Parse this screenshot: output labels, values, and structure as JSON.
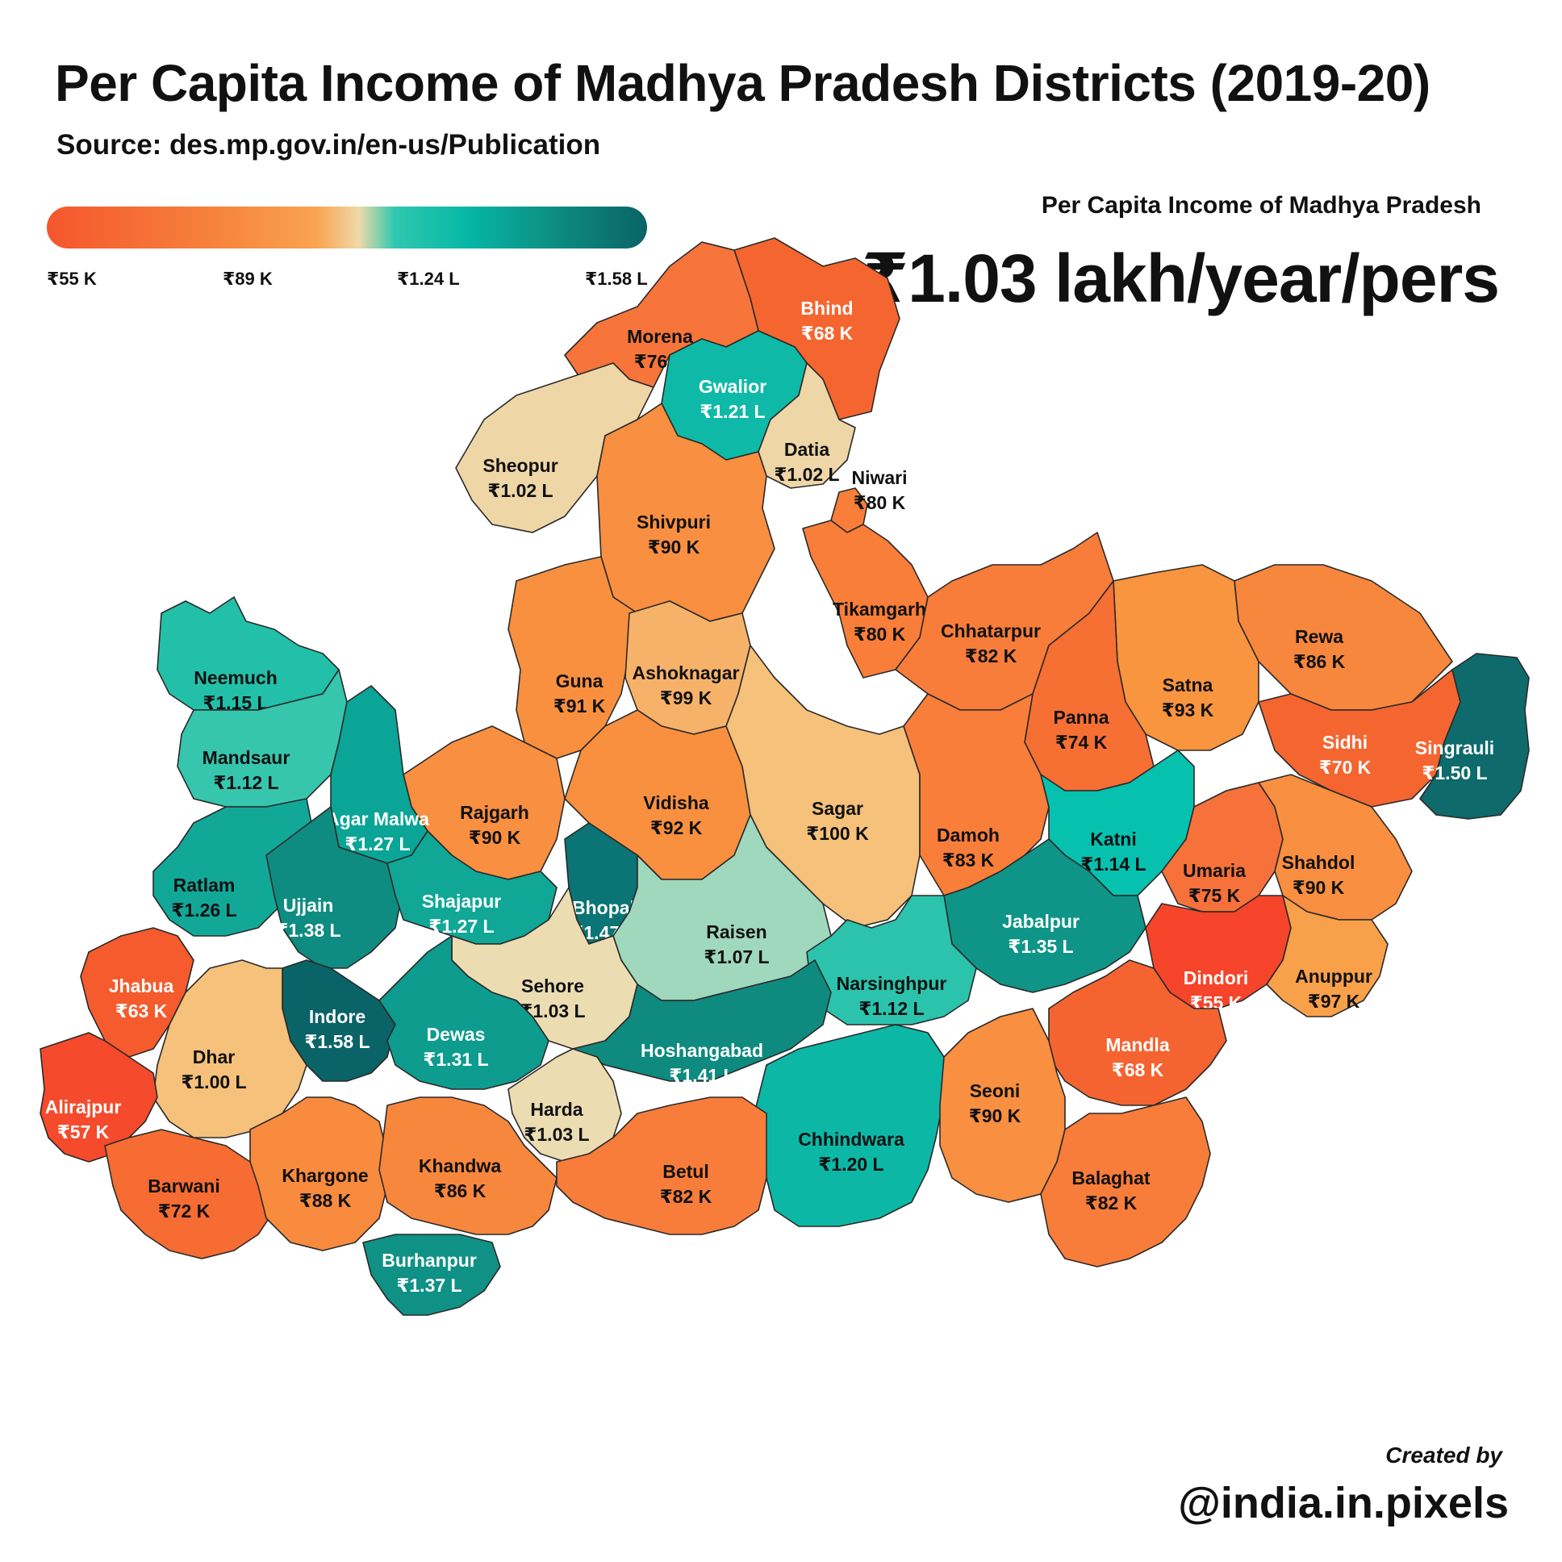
{
  "title": "Per Capita Income of Madhya Pradesh Districts (2019-20)",
  "source": "Source: des.mp.gov.in/en-us/Publication",
  "legend": {
    "ticks": [
      "₹55 K",
      "₹89 K",
      "₹1.24 L",
      "₹1.58 L"
    ],
    "min_color": "#f5562e",
    "max_color": "#0a6366"
  },
  "state_summary": {
    "label": "Per Capita Income of Madhya Pradesh",
    "value": "₹1.03 lakh/year/pers"
  },
  "credit": {
    "line1": "Created by",
    "line2": "@india.in.pixels"
  },
  "districts": [
    {
      "name": "Bhind",
      "value": "₹68 K",
      "color": "#f5652f"
    },
    {
      "name": "Morena",
      "value": "₹76 K",
      "color": "#f7753a"
    },
    {
      "name": "Gwalior",
      "value": "₹1.21 L",
      "color": "#0fb9a7"
    },
    {
      "name": "Datia",
      "value": "₹1.02 L",
      "color": "#efd6a6"
    },
    {
      "name": "Sheopur",
      "value": "₹1.02 L",
      "color": "#efd6a6"
    },
    {
      "name": "Shivpuri",
      "value": "₹90 K",
      "color": "#f98f40"
    },
    {
      "name": "Niwari",
      "value": "₹80 K",
      "color": "#f87e3a"
    },
    {
      "name": "Tikamgarh",
      "value": "₹80 K",
      "color": "#f87e3a"
    },
    {
      "name": "Chhatarpur",
      "value": "₹82 K",
      "color": "#f87d3a"
    },
    {
      "name": "Guna",
      "value": "₹91 K",
      "color": "#f9903f"
    },
    {
      "name": "Ashoknagar",
      "value": "₹99 K",
      "color": "#f7b26a"
    },
    {
      "name": "Neemuch",
      "value": "₹1.15 L",
      "color": "#22c0a8"
    },
    {
      "name": "Mandsaur",
      "value": "₹1.12 L",
      "color": "#36c6ae"
    },
    {
      "name": "Rewa",
      "value": "₹86 K",
      "color": "#f8873e"
    },
    {
      "name": "Satna",
      "value": "₹93 K",
      "color": "#f9943f"
    },
    {
      "name": "Panna",
      "value": "₹74 K",
      "color": "#f66f33"
    },
    {
      "name": "Sidhi",
      "value": "₹70 K",
      "color": "#f56530"
    },
    {
      "name": "Singrauli",
      "value": "₹1.50 L",
      "color": "#0e6a6b"
    },
    {
      "name": "Rajgarh",
      "value": "₹90 K",
      "color": "#f98f40"
    },
    {
      "name": "Vidisha",
      "value": "₹92 K",
      "color": "#f9903f"
    },
    {
      "name": "Sagar",
      "value": "₹100 K",
      "color": "#f5c17b"
    },
    {
      "name": "Damoh",
      "value": "₹83 K",
      "color": "#f87e3a"
    },
    {
      "name": "Agar Malwa",
      "value": "₹1.27 L",
      "color": "#0aa596"
    },
    {
      "name": "Katni",
      "value": "₹1.14 L",
      "color": "#07c1af"
    },
    {
      "name": "Ratlam",
      "value": "₹1.26 L",
      "color": "#12a898"
    },
    {
      "name": "Ujjain",
      "value": "₹1.38 L",
      "color": "#0f8c81"
    },
    {
      "name": "Shajapur",
      "value": "₹1.27 L",
      "color": "#10a796"
    },
    {
      "name": "Bhopal",
      "value": "₹1.47 L",
      "color": "#0b7474"
    },
    {
      "name": "Raisen",
      "value": "₹1.07 L",
      "color": "#9fd8bd"
    },
    {
      "name": "Umaria",
      "value": "₹75 K",
      "color": "#f6723a"
    },
    {
      "name": "Shahdol",
      "value": "₹90 K",
      "color": "#f98f40"
    },
    {
      "name": "Jabalpur",
      "value": "₹1.35 L",
      "color": "#0e9587"
    },
    {
      "name": "Jhabua",
      "value": "₹63 K",
      "color": "#f55b2d"
    },
    {
      "name": "Sehore",
      "value": "₹1.03 L",
      "color": "#ecdcb1"
    },
    {
      "name": "Narsinghpur",
      "value": "₹1.12 L",
      "color": "#2cc3ad"
    },
    {
      "name": "Dindori",
      "value": "₹55 K",
      "color": "#f6452a"
    },
    {
      "name": "Anuppur",
      "value": "₹97 K",
      "color": "#f9a04a"
    },
    {
      "name": "Indore",
      "value": "₹1.58 L",
      "color": "#0a6366"
    },
    {
      "name": "Dewas",
      "value": "₹1.31 L",
      "color": "#0d9c8e"
    },
    {
      "name": "Hoshangabad",
      "value": "₹1.41 L",
      "color": "#0f8a7f"
    },
    {
      "name": "Dhar",
      "value": "₹1.00 L",
      "color": "#f5c17b"
    },
    {
      "name": "Mandla",
      "value": "₹68 K",
      "color": "#f56430"
    },
    {
      "name": "Alirajpur",
      "value": "₹57 K",
      "color": "#f54a2b"
    },
    {
      "name": "Harda",
      "value": "₹1.03 L",
      "color": "#ecdcb1"
    },
    {
      "name": "Chhindwara",
      "value": "₹1.20 L",
      "color": "#0db7a5"
    },
    {
      "name": "Seoni",
      "value": "₹90 K",
      "color": "#f98f40"
    },
    {
      "name": "Barwani",
      "value": "₹72 K",
      "color": "#f66c33"
    },
    {
      "name": "Khargone",
      "value": "₹88 K",
      "color": "#f98b3e"
    },
    {
      "name": "Khandwa",
      "value": "₹86 K",
      "color": "#f8873e"
    },
    {
      "name": "Betul",
      "value": "₹82 K",
      "color": "#f87d3a"
    },
    {
      "name": "Balaghat",
      "value": "₹82 K",
      "color": "#f87d3a"
    },
    {
      "name": "Burhanpur",
      "value": "₹1.37 L",
      "color": "#0f9185"
    }
  ]
}
